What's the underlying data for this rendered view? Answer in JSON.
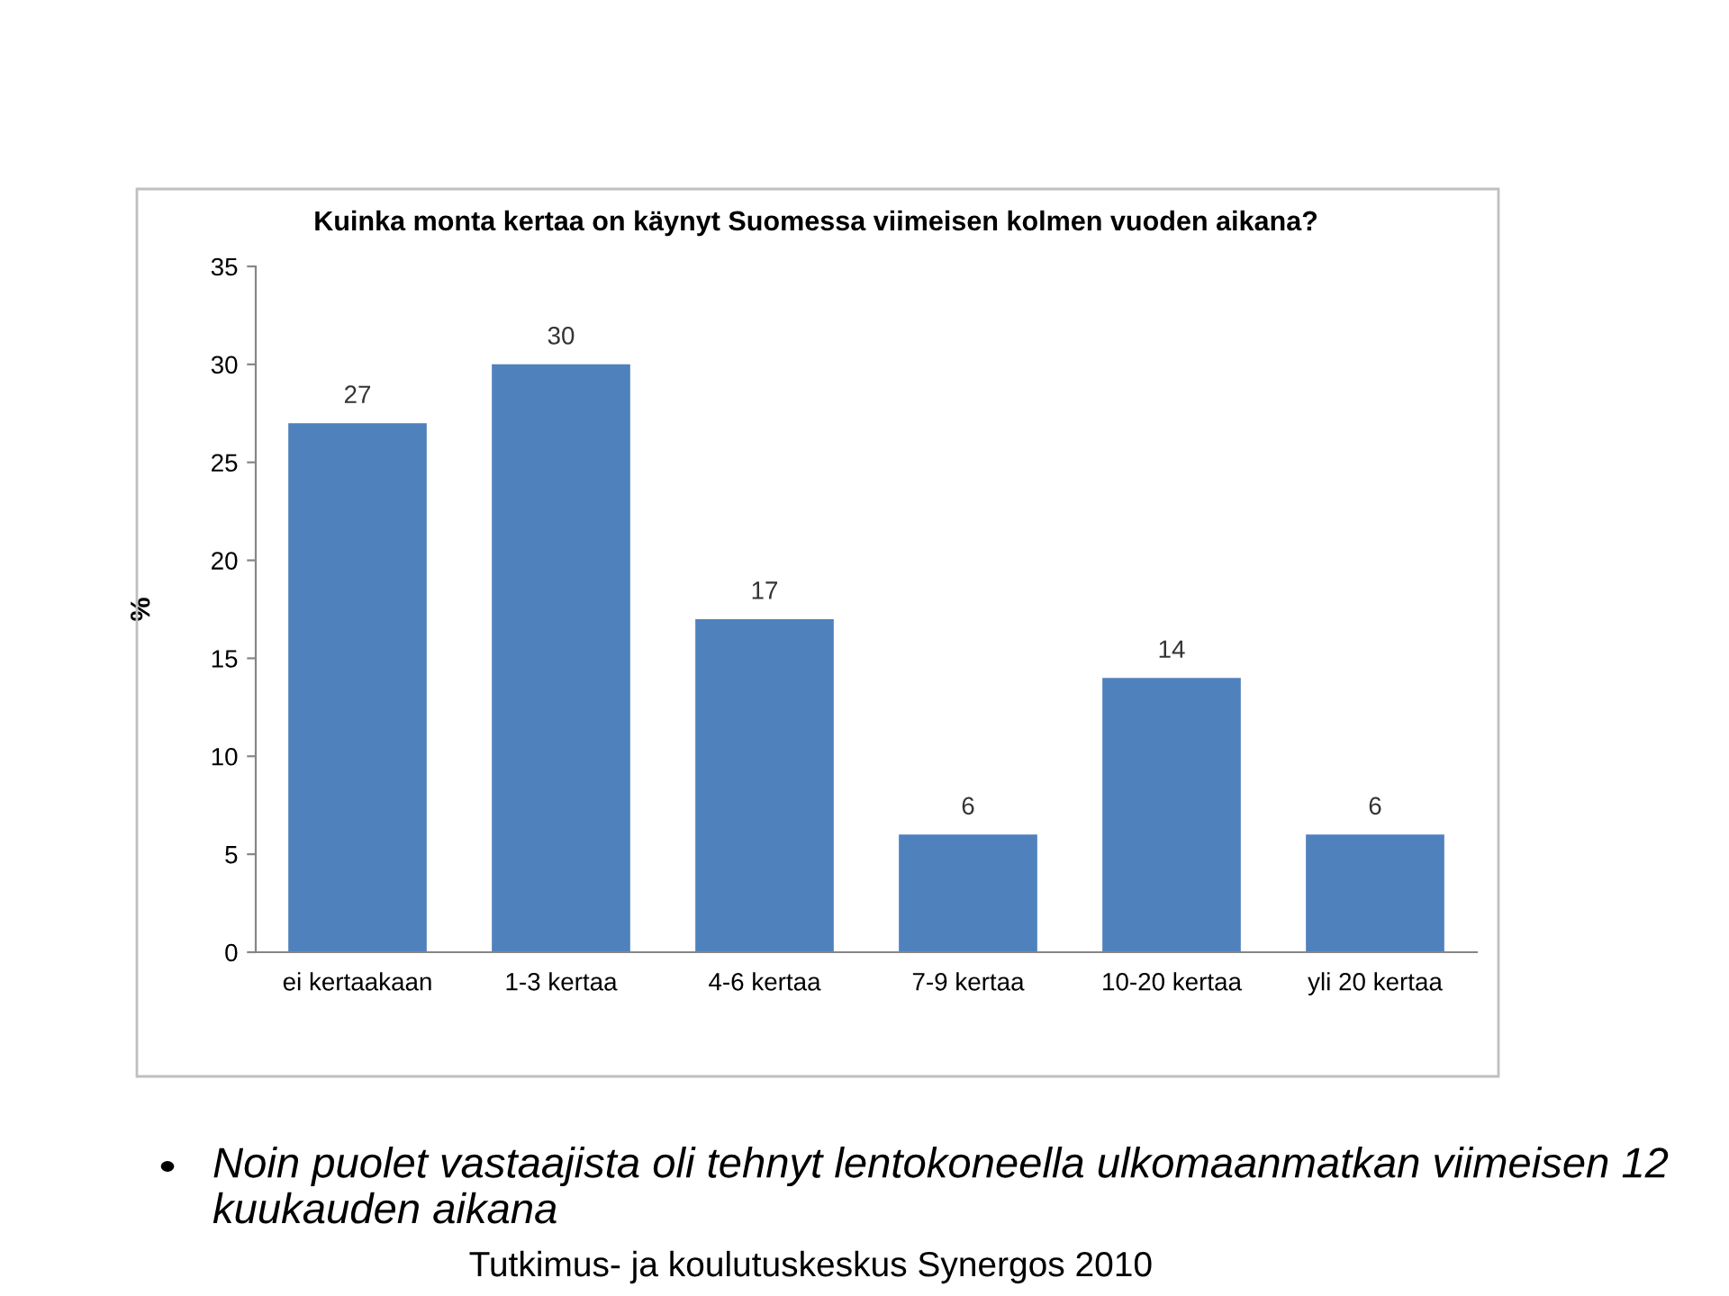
{
  "chart_data": {
    "type": "bar",
    "title": "Kuinka monta kertaa on käynyt Suomessa viimeisen kolmen vuoden aikana?",
    "ylabel": "%",
    "categories": [
      "ei kertaakaan",
      "1-3 kertaa",
      "4-6 kertaa",
      "7-9 kertaa",
      "10-20 kertaa",
      "yli 20 kertaa"
    ],
    "values": [
      27,
      30,
      17,
      6,
      14,
      6
    ],
    "color": "#4f81bd",
    "ylim": [
      0,
      35
    ],
    "yticks": [
      0,
      5,
      10,
      15,
      20,
      25,
      30,
      35
    ],
    "grid": false,
    "data_labels": true,
    "annotations": [
      "Noin puolet vastaajista oli tehnyt lentokoneella ulkomaanmatkan viimeisen 12 kuukauden aikana",
      "Tutkimus- ja koulutuskeskus Synergos 2010"
    ]
  }
}
